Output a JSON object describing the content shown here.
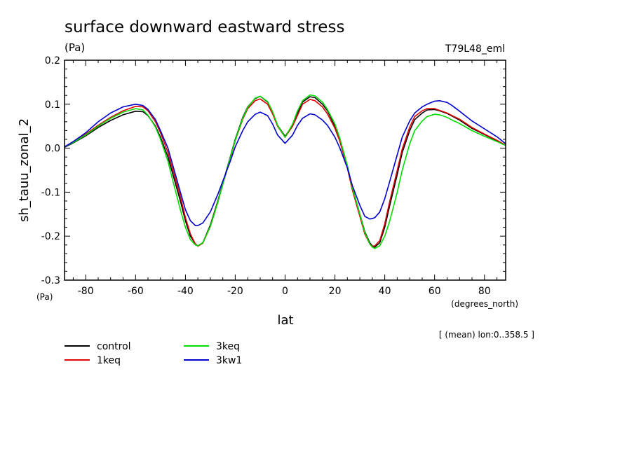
{
  "chart_data": {
    "type": "line",
    "title": "surface downward eastward stress",
    "title_units": "(Pa)",
    "tag": "T79L48_eml",
    "xlabel": "lat",
    "xunits": "(degrees_north)",
    "ylabel": "sh_tauu_zonal_2",
    "yunits": "(Pa)",
    "note": "[ (mean) lon:0..358.5 ]",
    "xlim": [
      -88.5,
      88.5
    ],
    "ylim": [
      -0.3,
      0.2
    ],
    "xticks": [
      -80,
      -60,
      -40,
      -20,
      0,
      20,
      40,
      60,
      80
    ],
    "xtick_labels": [
      "-80",
      "-60",
      "-40",
      "-20",
      "0",
      "20",
      "40",
      "60",
      "80"
    ],
    "yticks": [
      -0.3,
      -0.2,
      -0.1,
      0.0,
      0.1,
      0.2
    ],
    "ytick_labels": [
      "-0.3",
      "-0.2",
      "-0.1",
      "0.0",
      "0.1",
      "0.2"
    ],
    "legend_position": "bottom-left",
    "grid": false,
    "series": [
      {
        "name": "control",
        "color": "#000000",
        "x": [
          -88.5,
          -85,
          -80,
          -75,
          -70,
          -65,
          -60,
          -57,
          -55,
          -52,
          -50,
          -47,
          -45,
          -42,
          -40,
          -38,
          -36,
          -35,
          -33,
          -30,
          -27,
          -25,
          -22,
          -20,
          -17,
          -15,
          -12,
          -10,
          -7,
          -5,
          -3,
          0,
          3,
          5,
          7,
          10,
          12,
          15,
          17,
          20,
          22,
          25,
          27,
          30,
          32,
          34,
          35,
          36,
          38,
          40,
          42,
          45,
          47,
          50,
          52,
          55,
          57,
          60,
          62,
          65,
          67,
          70,
          75,
          80,
          85,
          88.5
        ],
        "y": [
          0.002,
          0.012,
          0.028,
          0.047,
          0.063,
          0.076,
          0.084,
          0.083,
          0.074,
          0.05,
          0.025,
          -0.02,
          -0.06,
          -0.12,
          -0.165,
          -0.2,
          -0.218,
          -0.222,
          -0.215,
          -0.175,
          -0.12,
          -0.08,
          -0.02,
          0.02,
          0.07,
          0.094,
          0.113,
          0.118,
          0.105,
          0.082,
          0.052,
          0.027,
          0.052,
          0.08,
          0.105,
          0.117,
          0.115,
          0.1,
          0.085,
          0.05,
          0.02,
          -0.04,
          -0.09,
          -0.15,
          -0.19,
          -0.215,
          -0.222,
          -0.225,
          -0.215,
          -0.18,
          -0.13,
          -0.06,
          -0.01,
          0.04,
          0.065,
          0.08,
          0.087,
          0.088,
          0.085,
          0.079,
          0.073,
          0.064,
          0.045,
          0.031,
          0.017,
          0.006
        ]
      },
      {
        "name": "1keq",
        "color": "#e00000",
        "x": [
          -88.5,
          -85,
          -80,
          -75,
          -70,
          -65,
          -60,
          -57,
          -55,
          -52,
          -50,
          -47,
          -45,
          -42,
          -40,
          -38,
          -36,
          -35,
          -33,
          -30,
          -27,
          -25,
          -22,
          -20,
          -17,
          -15,
          -12,
          -10,
          -7,
          -5,
          -3,
          0,
          3,
          5,
          7,
          10,
          12,
          15,
          17,
          20,
          22,
          25,
          27,
          30,
          32,
          34,
          35,
          36,
          38,
          40,
          42,
          45,
          47,
          50,
          52,
          55,
          57,
          60,
          62,
          65,
          67,
          70,
          75,
          80,
          85,
          88.5
        ],
        "y": [
          0.003,
          0.014,
          0.032,
          0.052,
          0.07,
          0.085,
          0.095,
          0.094,
          0.085,
          0.06,
          0.035,
          -0.01,
          -0.05,
          -0.11,
          -0.158,
          -0.195,
          -0.218,
          -0.223,
          -0.216,
          -0.178,
          -0.123,
          -0.082,
          -0.024,
          0.017,
          0.066,
          0.09,
          0.108,
          0.112,
          0.1,
          0.078,
          0.05,
          0.025,
          0.05,
          0.075,
          0.1,
          0.111,
          0.108,
          0.094,
          0.078,
          0.045,
          0.015,
          -0.045,
          -0.095,
          -0.155,
          -0.195,
          -0.218,
          -0.223,
          -0.222,
          -0.21,
          -0.172,
          -0.12,
          -0.05,
          -0.002,
          0.048,
          0.072,
          0.085,
          0.09,
          0.09,
          0.086,
          0.08,
          0.074,
          0.066,
          0.047,
          0.032,
          0.018,
          0.007
        ]
      },
      {
        "name": "3keq",
        "color": "#00dd00",
        "x": [
          -88.5,
          -85,
          -80,
          -75,
          -70,
          -65,
          -60,
          -57,
          -55,
          -52,
          -50,
          -47,
          -45,
          -42,
          -40,
          -38,
          -36,
          -35,
          -33,
          -30,
          -27,
          -25,
          -22,
          -20,
          -17,
          -15,
          -12,
          -10,
          -7,
          -5,
          -3,
          0,
          3,
          5,
          7,
          10,
          12,
          15,
          17,
          20,
          22,
          25,
          27,
          30,
          32,
          34,
          35,
          36,
          38,
          40,
          42,
          45,
          47,
          50,
          52,
          55,
          57,
          60,
          62,
          65,
          67,
          70,
          75,
          80,
          85,
          88.5
        ],
        "y": [
          0.003,
          0.013,
          0.03,
          0.05,
          0.068,
          0.082,
          0.09,
          0.087,
          0.075,
          0.048,
          0.02,
          -0.03,
          -0.075,
          -0.14,
          -0.18,
          -0.208,
          -0.22,
          -0.222,
          -0.215,
          -0.178,
          -0.123,
          -0.082,
          -0.022,
          0.018,
          0.068,
          0.093,
          0.114,
          0.118,
          0.106,
          0.083,
          0.052,
          0.025,
          0.055,
          0.085,
          0.108,
          0.121,
          0.119,
          0.105,
          0.088,
          0.055,
          0.022,
          -0.04,
          -0.09,
          -0.15,
          -0.192,
          -0.218,
          -0.225,
          -0.228,
          -0.222,
          -0.2,
          -0.165,
          -0.1,
          -0.05,
          0.01,
          0.04,
          0.062,
          0.072,
          0.077,
          0.076,
          0.07,
          0.064,
          0.056,
          0.04,
          0.027,
          0.015,
          0.006
        ]
      },
      {
        "name": "3kw1",
        "color": "#0000cc",
        "x": [
          -88.5,
          -85,
          -80,
          -75,
          -70,
          -65,
          -60,
          -57,
          -55,
          -52,
          -50,
          -47,
          -45,
          -42,
          -40,
          -38,
          -36,
          -35,
          -33,
          -30,
          -27,
          -25,
          -22,
          -20,
          -17,
          -15,
          -12,
          -10,
          -7,
          -5,
          -3,
          0,
          3,
          5,
          7,
          10,
          12,
          15,
          17,
          20,
          22,
          25,
          27,
          30,
          32,
          34,
          35,
          36,
          38,
          40,
          42,
          45,
          47,
          50,
          52,
          55,
          57,
          60,
          62,
          65,
          67,
          70,
          75,
          80,
          85,
          88.5
        ],
        "y": [
          0.003,
          0.015,
          0.035,
          0.06,
          0.08,
          0.094,
          0.1,
          0.097,
          0.088,
          0.065,
          0.04,
          0.0,
          -0.04,
          -0.1,
          -0.14,
          -0.165,
          -0.176,
          -0.176,
          -0.17,
          -0.145,
          -0.105,
          -0.075,
          -0.03,
          0.003,
          0.04,
          0.06,
          0.077,
          0.082,
          0.074,
          0.055,
          0.03,
          0.011,
          0.03,
          0.052,
          0.068,
          0.078,
          0.076,
          0.064,
          0.052,
          0.025,
          0.0,
          -0.045,
          -0.085,
          -0.13,
          -0.155,
          -0.161,
          -0.16,
          -0.158,
          -0.145,
          -0.115,
          -0.075,
          -0.015,
          0.025,
          0.062,
          0.08,
          0.094,
          0.1,
          0.107,
          0.108,
          0.104,
          0.097,
          0.084,
          0.062,
          0.044,
          0.026,
          0.01
        ]
      }
    ]
  }
}
